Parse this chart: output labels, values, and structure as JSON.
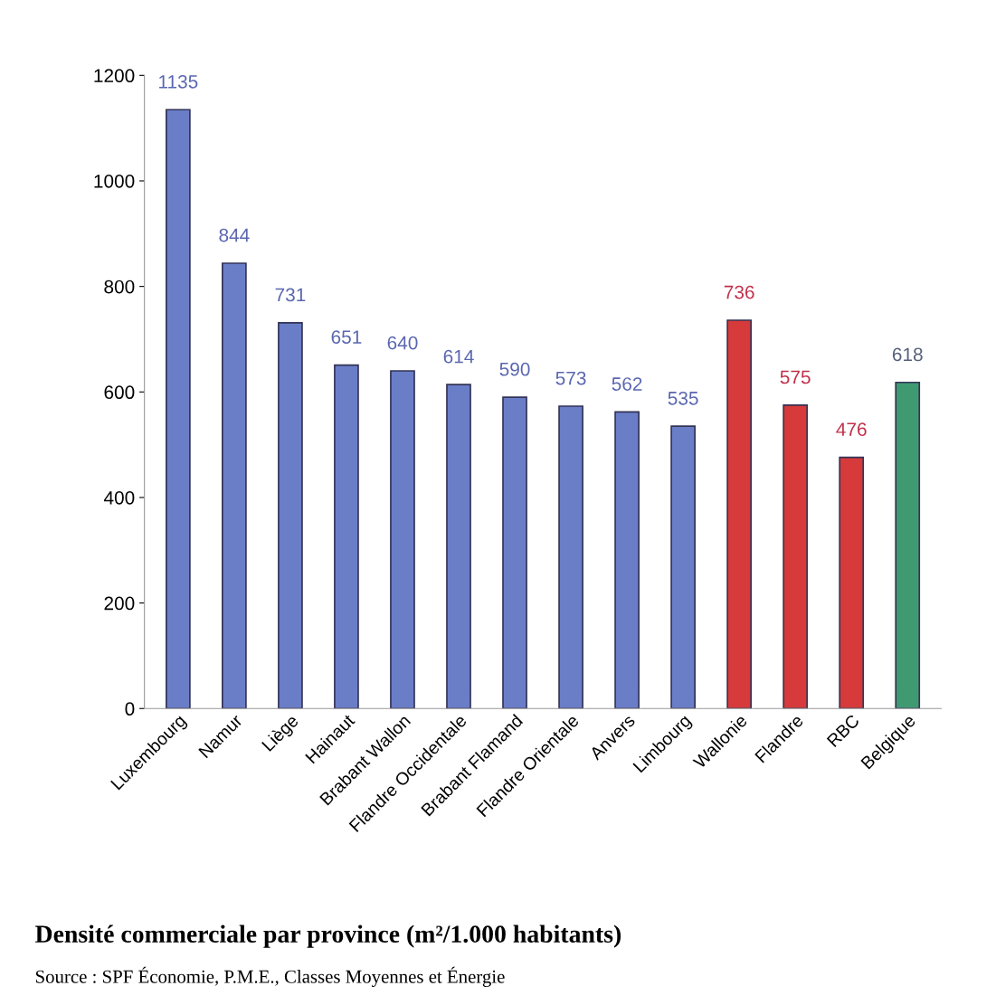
{
  "chart_data": {
    "type": "bar",
    "categories": [
      "Luxembourg",
      "Namur",
      "Liège",
      "Hainaut",
      "Brabant Wallon",
      "Flandre Occidentale",
      "Brabant Flamand",
      "Flandre Orientale",
      "Anvers",
      "Limbourg",
      "Wallonie",
      "Flandre",
      "RBC",
      "Belgique"
    ],
    "values": [
      1135,
      844,
      731,
      651,
      640,
      614,
      590,
      573,
      562,
      535,
      736,
      575,
      476,
      618
    ],
    "colors": [
      "#6a7ec8",
      "#6a7ec8",
      "#6a7ec8",
      "#6a7ec8",
      "#6a7ec8",
      "#6a7ec8",
      "#6a7ec8",
      "#6a7ec8",
      "#6a7ec8",
      "#6a7ec8",
      "#d63a3a",
      "#d63a3a",
      "#d63a3a",
      "#3f9a72"
    ],
    "data_labels": true,
    "ylim": [
      0,
      1200
    ],
    "yticks": [
      0,
      200,
      400,
      600,
      800,
      1000,
      1200
    ],
    "annotations": [
      "Densité commerciale par province (m²/1.000 habitants)",
      "Source : SPF Économie, P.M.E., Classes Moyennes et Énergie"
    ]
  }
}
